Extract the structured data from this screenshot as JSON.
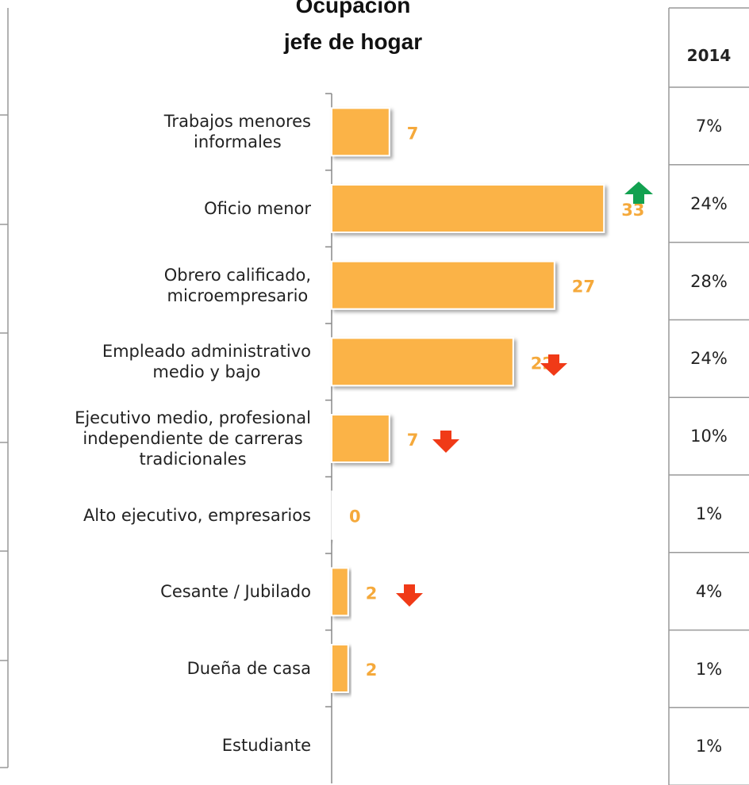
{
  "chart_data": {
    "type": "barh",
    "title": "Ocupación\njefe de hogar",
    "categories": [
      "Trabajos menores\ninformales",
      "Oficio menor",
      "Obrero calificado,\nmicroempresario",
      "Empleado administrativo\nmedio y bajo",
      "Ejecutivo medio, profesional\nindependiente de carreras\ntradicionales",
      "Alto ejecutivo, empresarios",
      "Cesante / Jubilado",
      "Dueña de casa",
      "Estudiante"
    ],
    "values": [
      7,
      33,
      27,
      22,
      7,
      0,
      2,
      2,
      null
    ],
    "color": "#FBB347",
    "xlim": [
      0,
      40
    ],
    "table": {
      "header": "2014",
      "values": [
        "7%",
        "24%",
        "28%",
        "24%",
        "10%",
        "1%",
        "4%",
        "1%",
        "1%"
      ]
    }
  }
}
